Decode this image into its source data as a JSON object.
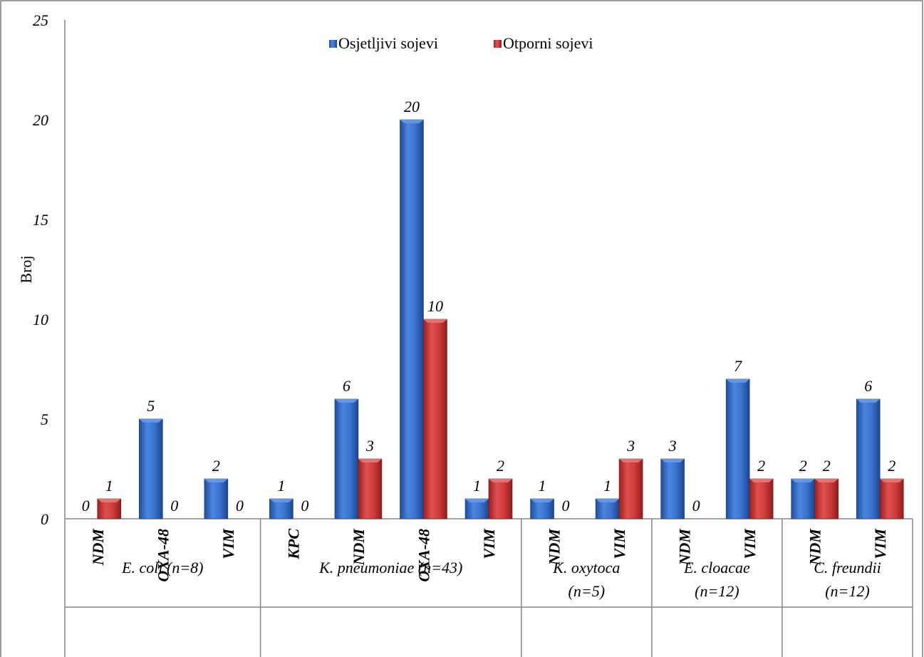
{
  "chart_data": {
    "type": "bar",
    "ylabel": "Broj",
    "ylim": [
      0,
      25
    ],
    "yticks": [
      0,
      5,
      10,
      15,
      20,
      25
    ],
    "grid": false,
    "legend_position": "top-center",
    "series": [
      {
        "name": "Osjetljivi sojevi",
        "color": "#2f66c4",
        "values": [
          0,
          5,
          2,
          1,
          6,
          20,
          1,
          1,
          1,
          3,
          7,
          2,
          6
        ]
      },
      {
        "name": "Otporni sojevi",
        "color": "#cc3333",
        "values": [
          1,
          0,
          0,
          0,
          3,
          10,
          2,
          0,
          3,
          0,
          2,
          2,
          2
        ]
      }
    ],
    "groups": [
      {
        "label": "E. coli (n=8)",
        "lines": [
          "E. coli (n=8)"
        ],
        "categories": [
          "NDM",
          "OXA-48",
          "VIM"
        ]
      },
      {
        "label": "K. pneumoniae (n=43)",
        "lines": [
          "K. pneumoniae (n=43)"
        ],
        "categories": [
          "KPC",
          "NDM",
          "OXA-48",
          "VIM"
        ]
      },
      {
        "label": "K. oxytoca (n=5)",
        "lines": [
          "K. oxytoca",
          "(n=5)"
        ],
        "categories": [
          "NDM",
          "VIM"
        ]
      },
      {
        "label": "E. cloacae (n=12)",
        "lines": [
          "E. cloacae",
          "(n=12)"
        ],
        "categories": [
          "NDM",
          "VIM"
        ]
      },
      {
        "label": "C. freundii (n=12)",
        "lines": [
          "C. freundii",
          "(n=12)"
        ],
        "categories": [
          "NDM",
          "VIM"
        ]
      }
    ]
  }
}
